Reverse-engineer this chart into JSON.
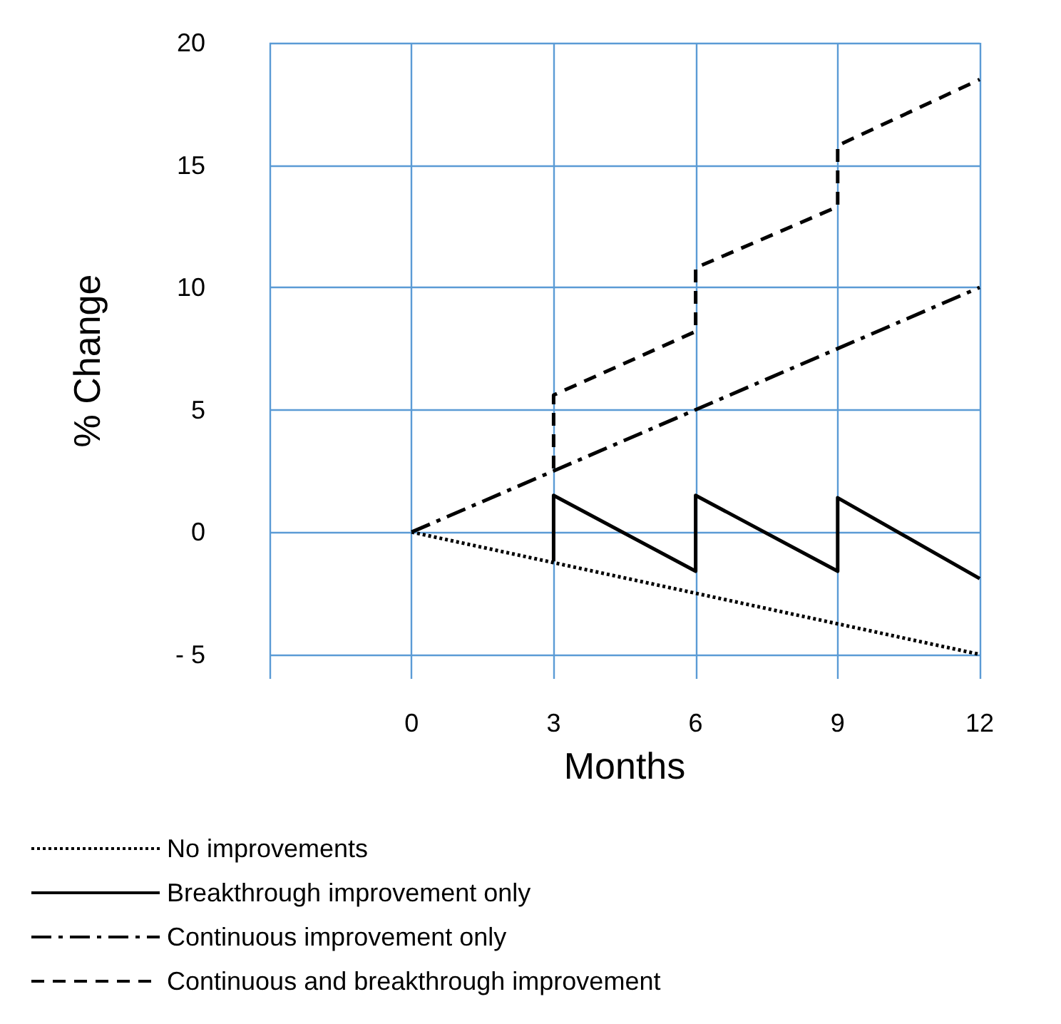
{
  "chart_data": {
    "type": "line",
    "xlabel": "Months",
    "ylabel": "% Change",
    "xlim": [
      -3,
      12
    ],
    "xticks": [
      {
        "value": -3,
        "label": null
      },
      0,
      3,
      6,
      9,
      12
    ],
    "ylim": [
      -6,
      20
    ],
    "yticks": [
      {
        "value": -5,
        "label": "- 5"
      },
      0,
      5,
      10,
      15,
      20
    ],
    "grid": true,
    "legend": "bottom left",
    "marker": "none",
    "series": [
      {
        "name": "No improvements",
        "color": "#000000",
        "line_style": "dotted",
        "x": [
          0,
          12
        ],
        "values": [
          0,
          -5
        ]
      },
      {
        "name": "Breakthrough improvement only",
        "color": "#000000",
        "line_style": "solid",
        "x": [
          3,
          3,
          6,
          6,
          9,
          9,
          12
        ],
        "values": [
          -1.2,
          1.5,
          -1.6,
          1.5,
          -1.6,
          1.4,
          -1.9
        ]
      },
      {
        "name": "Continuous improvement only",
        "color": "#000000",
        "line_style": "dashdot",
        "x": [
          0,
          12
        ],
        "values": [
          0,
          10
        ]
      },
      {
        "name": "Continuous and breakthrough improvement",
        "color": "#000000",
        "line_style": "dashed",
        "x": [
          3,
          3,
          6,
          6,
          9,
          9,
          12
        ],
        "values": [
          2.6,
          5.6,
          8.2,
          10.8,
          13.3,
          15.8,
          18.5
        ]
      }
    ]
  }
}
